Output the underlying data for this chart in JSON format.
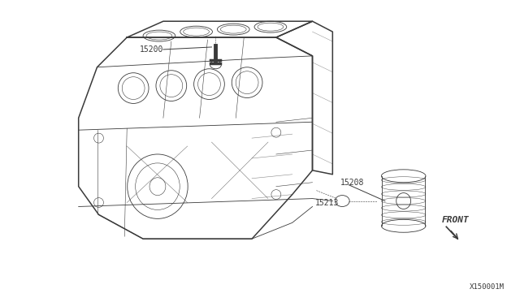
{
  "bg_color": "#ffffff",
  "line_color": "#3a3a3a",
  "label_color": "#3a3a3a",
  "fig_width": 6.4,
  "fig_height": 3.72,
  "dpi": 100,
  "lw_main": 1.1,
  "lw_detail": 0.6,
  "lw_thin": 0.4,
  "label_fs": 7.0,
  "ref_fs": 6.5
}
